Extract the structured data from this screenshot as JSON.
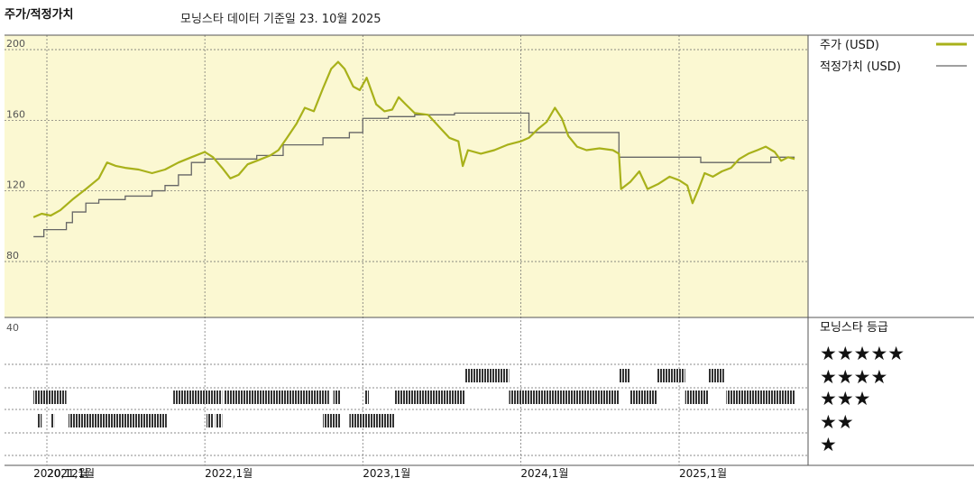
{
  "header": {
    "title": "주가/적정가치",
    "subtitle": "모닝스타 데이터 기준일 23. 10월 2025"
  },
  "colors": {
    "price": "#a8b11a",
    "fair_value": "#666666",
    "panel_bg": "#fbf8d2",
    "rating_bar": "#333333"
  },
  "legend": {
    "price_label": "주가 (USD)",
    "fair_value_label": "적정가치 (USD)",
    "rating_title": "모닝스타 등급"
  },
  "chart_data": {
    "type": "line",
    "ylim": [
      40,
      200
    ],
    "yticks": [
      "200",
      "160",
      "120",
      "80",
      "40"
    ],
    "xticks": [
      {
        "label": "2020,12월",
        "date": "2020-12-01"
      },
      {
        "label": "2021,1월",
        "date": "2021-01-01"
      },
      {
        "label": "2022,1월",
        "date": "2022-01-01"
      },
      {
        "label": "2023,1월",
        "date": "2023-01-01"
      },
      {
        "label": "2024,1월",
        "date": "2024-01-01"
      },
      {
        "label": "2025,1월",
        "date": "2025-01-01"
      }
    ],
    "series": [
      {
        "name": "주가 (USD)",
        "points": [
          [
            "2020-12-01",
            102
          ],
          [
            "2020-12-20",
            104
          ],
          [
            "2021-01-10",
            103
          ],
          [
            "2021-02-01",
            106
          ],
          [
            "2021-03-01",
            112
          ],
          [
            "2021-04-01",
            118
          ],
          [
            "2021-05-01",
            124
          ],
          [
            "2021-05-20",
            133
          ],
          [
            "2021-06-10",
            131
          ],
          [
            "2021-07-01",
            130
          ],
          [
            "2021-08-01",
            129
          ],
          [
            "2021-09-01",
            127
          ],
          [
            "2021-10-01",
            129
          ],
          [
            "2021-11-01",
            133
          ],
          [
            "2021-12-01",
            136
          ],
          [
            "2022-01-01",
            139
          ],
          [
            "2022-01-20",
            136
          ],
          [
            "2022-02-10",
            130
          ],
          [
            "2022-03-01",
            124
          ],
          [
            "2022-03-20",
            126
          ],
          [
            "2022-04-10",
            132
          ],
          [
            "2022-05-01",
            134
          ],
          [
            "2022-06-01",
            137
          ],
          [
            "2022-06-20",
            140
          ],
          [
            "2022-07-10",
            147
          ],
          [
            "2022-08-01",
            155
          ],
          [
            "2022-08-20",
            164
          ],
          [
            "2022-09-10",
            162
          ],
          [
            "2022-10-01",
            175
          ],
          [
            "2022-10-20",
            186
          ],
          [
            "2022-11-05",
            190
          ],
          [
            "2022-11-20",
            186
          ],
          [
            "2022-12-10",
            176
          ],
          [
            "2022-12-25",
            174
          ],
          [
            "2023-01-10",
            181
          ],
          [
            "2023-02-01",
            166
          ],
          [
            "2023-02-20",
            162
          ],
          [
            "2023-03-10",
            163
          ],
          [
            "2023-03-25",
            170
          ],
          [
            "2023-04-10",
            166
          ],
          [
            "2023-05-01",
            161
          ],
          [
            "2023-06-01",
            160
          ],
          [
            "2023-07-01",
            152
          ],
          [
            "2023-07-20",
            147
          ],
          [
            "2023-08-10",
            145
          ],
          [
            "2023-08-20",
            131
          ],
          [
            "2023-09-01",
            140
          ],
          [
            "2023-10-01",
            138
          ],
          [
            "2023-11-01",
            140
          ],
          [
            "2023-12-01",
            143
          ],
          [
            "2024-01-01",
            145
          ],
          [
            "2024-01-20",
            147
          ],
          [
            "2024-02-10",
            152
          ],
          [
            "2024-03-01",
            156
          ],
          [
            "2024-03-20",
            164
          ],
          [
            "2024-04-05",
            158
          ],
          [
            "2024-04-20",
            148
          ],
          [
            "2024-05-10",
            142
          ],
          [
            "2024-06-01",
            140
          ],
          [
            "2024-07-01",
            141
          ],
          [
            "2024-08-01",
            140
          ],
          [
            "2024-08-15",
            138
          ],
          [
            "2024-08-20",
            118
          ],
          [
            "2024-09-10",
            122
          ],
          [
            "2024-10-01",
            128
          ],
          [
            "2024-10-20",
            118
          ],
          [
            "2024-11-15",
            121
          ],
          [
            "2024-12-10",
            125
          ],
          [
            "2025-01-01",
            123
          ],
          [
            "2025-01-20",
            120
          ],
          [
            "2025-02-01",
            110
          ],
          [
            "2025-02-15",
            118
          ],
          [
            "2025-03-01",
            127
          ],
          [
            "2025-03-20",
            125
          ],
          [
            "2025-04-10",
            128
          ],
          [
            "2025-05-01",
            130
          ],
          [
            "2025-05-20",
            135
          ],
          [
            "2025-06-10",
            138
          ],
          [
            "2025-07-01",
            140
          ],
          [
            "2025-07-20",
            142
          ],
          [
            "2025-08-10",
            139
          ],
          [
            "2025-08-25",
            134
          ],
          [
            "2025-09-10",
            136
          ],
          [
            "2025-09-25",
            135
          ]
        ]
      },
      {
        "name": "적정가치 (USD)",
        "points": [
          [
            "2020-12-01",
            91
          ],
          [
            "2020-12-25",
            95
          ],
          [
            "2021-02-01",
            95
          ],
          [
            "2021-02-15",
            99
          ],
          [
            "2021-03-01",
            105
          ],
          [
            "2021-04-01",
            110
          ],
          [
            "2021-05-01",
            112
          ],
          [
            "2021-07-01",
            114
          ],
          [
            "2021-09-01",
            117
          ],
          [
            "2021-10-01",
            120
          ],
          [
            "2021-11-01",
            126
          ],
          [
            "2021-12-01",
            133
          ],
          [
            "2022-01-01",
            135
          ],
          [
            "2022-02-01",
            135
          ],
          [
            "2022-05-01",
            137
          ],
          [
            "2022-07-01",
            143
          ],
          [
            "2022-10-01",
            147
          ],
          [
            "2022-12-01",
            150
          ],
          [
            "2023-01-01",
            158
          ],
          [
            "2023-03-01",
            159
          ],
          [
            "2023-05-01",
            160
          ],
          [
            "2023-08-01",
            161
          ],
          [
            "2023-10-01",
            161
          ],
          [
            "2024-01-10",
            161
          ],
          [
            "2024-01-20",
            150
          ],
          [
            "2024-04-01",
            150
          ],
          [
            "2024-08-10",
            150
          ],
          [
            "2024-08-15",
            136
          ],
          [
            "2025-02-10",
            136
          ],
          [
            "2025-02-20",
            133
          ],
          [
            "2025-07-20",
            133
          ],
          [
            "2025-08-01",
            136
          ],
          [
            "2025-09-25",
            136
          ]
        ]
      }
    ],
    "rating_levels": [
      "★★★★★",
      "★★★★",
      "★★★",
      "★★",
      "★"
    ],
    "ratings": [
      {
        "stars": 3,
        "start": "2020-12-01",
        "end": "2021-02-15"
      },
      {
        "stars": 2,
        "start": "2020-12-10",
        "end": "2020-12-20"
      },
      {
        "stars": 2,
        "start": "2021-01-10",
        "end": "2021-01-18"
      },
      {
        "stars": 2,
        "start": "2021-02-20",
        "end": "2021-10-05"
      },
      {
        "stars": 3,
        "start": "2021-10-20",
        "end": "2022-02-10"
      },
      {
        "stars": 2,
        "start": "2022-01-05",
        "end": "2022-01-20"
      },
      {
        "stars": 2,
        "start": "2022-01-25",
        "end": "2022-02-10"
      },
      {
        "stars": 3,
        "start": "2022-02-15",
        "end": "2022-10-15"
      },
      {
        "stars": 3,
        "start": "2022-10-25",
        "end": "2022-11-10"
      },
      {
        "stars": 2,
        "start": "2022-10-01",
        "end": "2022-11-10"
      },
      {
        "stars": 2,
        "start": "2022-12-01",
        "end": "2023-03-15"
      },
      {
        "stars": 3,
        "start": "2023-01-05",
        "end": "2023-01-15"
      },
      {
        "stars": 3,
        "start": "2023-03-15",
        "end": "2023-08-25"
      },
      {
        "stars": 4,
        "start": "2023-08-25",
        "end": "2023-12-05"
      },
      {
        "stars": 3,
        "start": "2023-12-05",
        "end": "2024-08-15"
      },
      {
        "stars": 4,
        "start": "2024-08-15",
        "end": "2024-09-10"
      },
      {
        "stars": 3,
        "start": "2024-09-10",
        "end": "2024-11-10"
      },
      {
        "stars": 4,
        "start": "2024-11-10",
        "end": "2025-01-15"
      },
      {
        "stars": 3,
        "start": "2025-01-15",
        "end": "2025-03-10"
      },
      {
        "stars": 4,
        "start": "2025-03-10",
        "end": "2025-04-15"
      },
      {
        "stars": 3,
        "start": "2025-04-20",
        "end": "2025-09-25"
      }
    ]
  }
}
